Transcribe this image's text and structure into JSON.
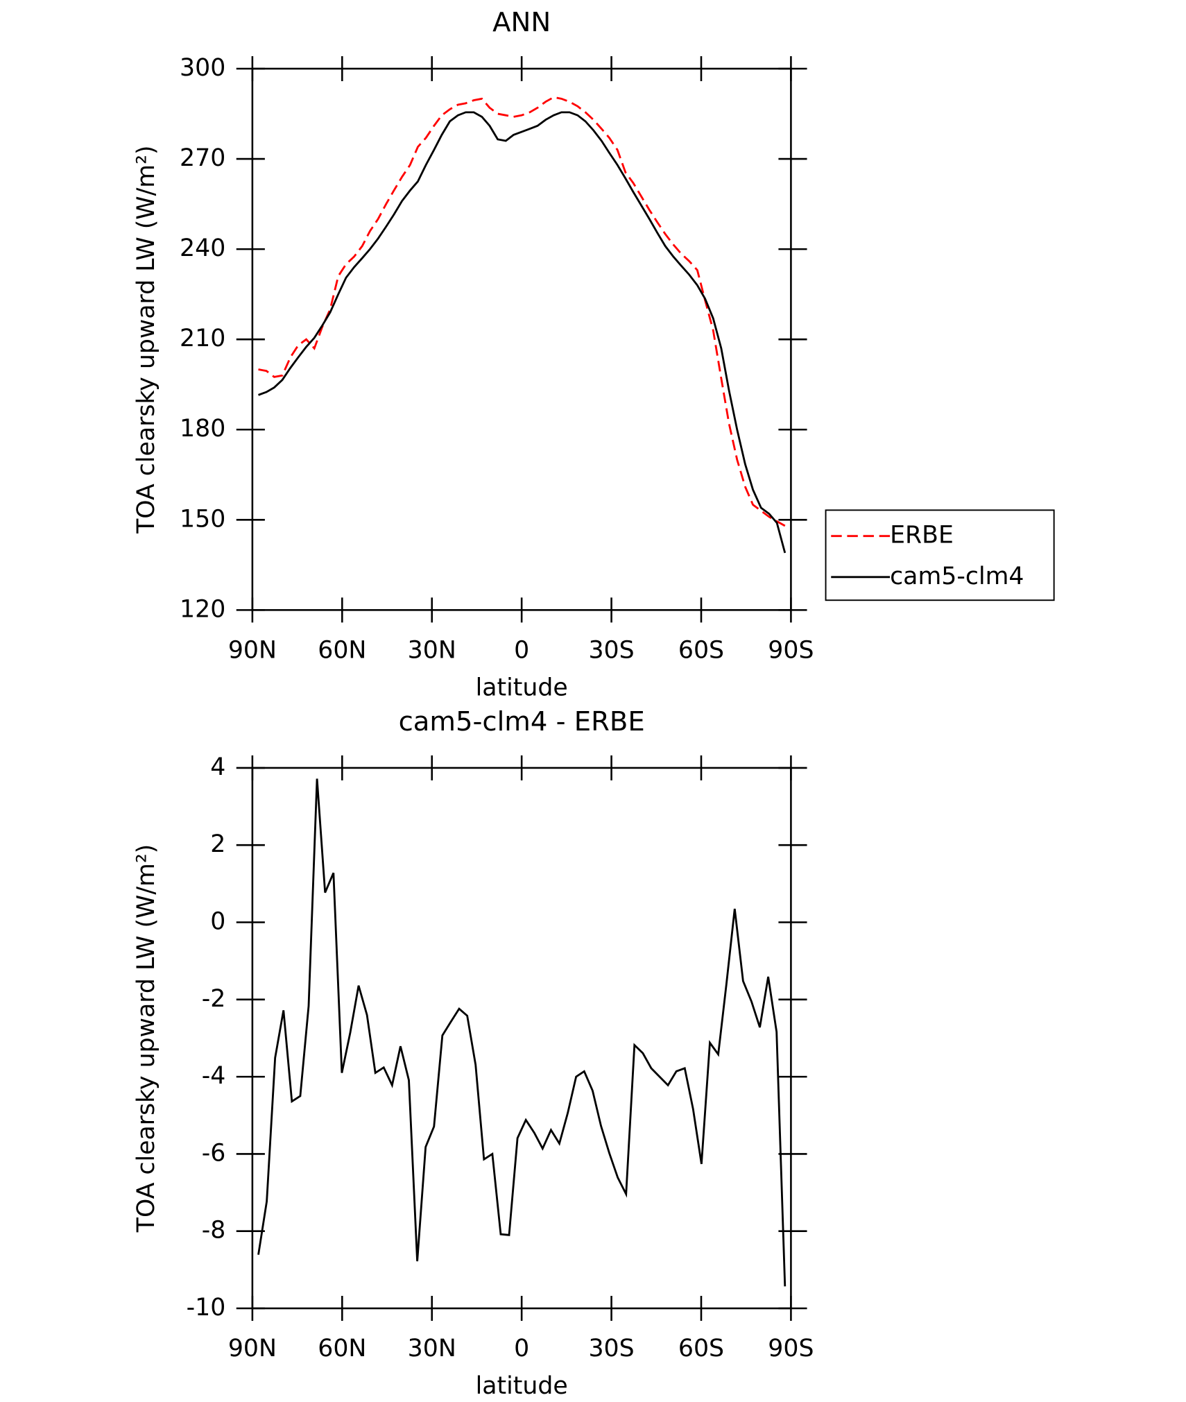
{
  "chart_data": [
    {
      "type": "line",
      "title": "ANN",
      "xlabel": "latitude",
      "ylabel": "TOA clearsky upward LW (W/m²)",
      "xlim": [
        90,
        -90
      ],
      "xticks": [
        {
          "value": 90,
          "label": "90N"
        },
        {
          "value": 60,
          "label": "60N"
        },
        {
          "value": 30,
          "label": "30N"
        },
        0,
        {
          "value": -30,
          "label": "30S"
        },
        {
          "value": -60,
          "label": "60S"
        },
        {
          "value": -90,
          "label": "90S"
        }
      ],
      "ylim": [
        120,
        300
      ],
      "yticks": [
        120,
        150,
        180,
        210,
        240,
        270,
        300
      ],
      "legend": "outside right",
      "x": [
        88,
        85.3,
        82.7,
        80,
        77.3,
        74.7,
        72,
        69.3,
        66.7,
        64,
        61.3,
        58.7,
        56,
        53.3,
        50.7,
        48,
        45.3,
        42.7,
        40,
        37.3,
        34.7,
        32,
        29.3,
        26.7,
        24,
        21.3,
        18.7,
        16,
        13.3,
        10.7,
        8,
        5.3,
        2.7,
        0,
        -2.7,
        -5.3,
        -8,
        -10.7,
        -13.3,
        -16,
        -18.7,
        -21.3,
        -24,
        -26.7,
        -29.3,
        -32,
        -34.7,
        -37.3,
        -40,
        -42.7,
        -45.3,
        -48,
        -50.7,
        -53.3,
        -56,
        -58.7,
        -61.3,
        -64,
        -66.7,
        -69.3,
        -72,
        -74.7,
        -77.3,
        -80,
        -82.7,
        -85.3,
        -88
      ],
      "series": [
        {
          "name": "ERBE",
          "color": "#ff0000",
          "linestyle": "dashed",
          "values": [
            200,
            199.5,
            197.5,
            198,
            204,
            208,
            210,
            207,
            214,
            220,
            231,
            235,
            237.5,
            241,
            246,
            250,
            255,
            259.5,
            264,
            268,
            274,
            277,
            281,
            284.5,
            286.5,
            288,
            288.5,
            289.5,
            290,
            287,
            285,
            284.5,
            284,
            284.5,
            285.5,
            287,
            289,
            290.5,
            290,
            289,
            287.5,
            285.5,
            283,
            280,
            277,
            273,
            265.5,
            262,
            257.5,
            253,
            249,
            245,
            241.5,
            238.5,
            236,
            233,
            223,
            213,
            197,
            182,
            170,
            161,
            155,
            153,
            151,
            149.5,
            148
          ]
        },
        {
          "name": "cam5-clm4",
          "color": "#000000",
          "linestyle": "solid",
          "values": [
            191.5,
            192.5,
            194,
            196.5,
            200.5,
            204,
            207.5,
            210.5,
            214.5,
            219,
            225,
            230.5,
            234,
            237,
            240,
            243.5,
            247.5,
            251.5,
            256,
            259.5,
            262.5,
            268,
            273,
            278,
            282.5,
            284.5,
            285.5,
            285.5,
            284,
            281,
            276.5,
            276,
            278,
            279,
            280,
            281,
            283,
            284.5,
            285.5,
            285.5,
            284.5,
            282.5,
            279.5,
            276,
            272,
            268,
            263.5,
            259,
            254.5,
            250,
            245.5,
            241,
            237.5,
            234.5,
            231.5,
            228,
            223.5,
            217,
            207,
            193,
            180,
            168.5,
            160,
            154,
            152,
            149,
            139
          ]
        }
      ]
    },
    {
      "type": "line",
      "title": "cam5-clm4 - ERBE",
      "xlabel": "latitude",
      "ylabel": "TOA clearsky upward LW (W/m²)",
      "xlim": [
        90,
        -90
      ],
      "xticks": [
        {
          "value": 90,
          "label": "90N"
        },
        {
          "value": 60,
          "label": "60N"
        },
        {
          "value": 30,
          "label": "30N"
        },
        0,
        {
          "value": -30,
          "label": "30S"
        },
        {
          "value": -60,
          "label": "60S"
        },
        {
          "value": -90,
          "label": "90S"
        }
      ],
      "ylim": [
        -10,
        4
      ],
      "yticks": [
        -10,
        -8,
        -6,
        -4,
        -2,
        0,
        2,
        4
      ],
      "x": [
        88,
        85.2,
        82.4,
        79.6,
        76.8,
        74,
        71.2,
        68.4,
        65.7,
        62.9,
        60.1,
        57.3,
        54.5,
        51.7,
        48.9,
        46.1,
        43.3,
        40.5,
        37.7,
        34.9,
        32.1,
        29.3,
        26.5,
        23.7,
        20.9,
        18.2,
        15.4,
        12.6,
        9.8,
        7,
        4.2,
        1.4,
        -1.4,
        -4.2,
        -7,
        -9.8,
        -12.6,
        -15.4,
        -18.2,
        -20.9,
        -23.7,
        -26.5,
        -29.3,
        -32.1,
        -34.9,
        -37.7,
        -40.5,
        -43.3,
        -46.1,
        -48.9,
        -51.7,
        -54.5,
        -57.3,
        -60.1,
        -62.9,
        -65.7,
        -68.4,
        -71.2,
        -74,
        -76.8,
        -79.6,
        -82.4,
        -85.2,
        -88
      ],
      "series": [
        {
          "color": "#000000",
          "linestyle": "solid",
          "values": [
            -8.61,
            -7.23,
            -3.51,
            -2.28,
            -4.64,
            -4.5,
            -2.17,
            3.72,
            0.77,
            1.28,
            -3.9,
            -2.86,
            -1.64,
            -2.4,
            -3.9,
            -3.76,
            -4.22,
            -3.21,
            -4.09,
            -8.78,
            -5.82,
            -5.29,
            -2.93,
            -2.58,
            -2.24,
            -2.42,
            -3.69,
            -6.14,
            -6,
            -8.08,
            -8.1,
            -5.59,
            -5.12,
            -5.45,
            -5.86,
            -5.38,
            -5.73,
            -4.94,
            -4,
            -3.86,
            -4.36,
            -5.27,
            -5.98,
            -6.61,
            -7.04,
            -3.18,
            -3.39,
            -3.78,
            -4,
            -4.22,
            -3.86,
            -3.78,
            -4.84,
            -6.26,
            -3.12,
            -3.42,
            -1.62,
            0.35,
            -1.52,
            -2.05,
            -2.72,
            -1.41,
            -2.84,
            -9.43
          ]
        }
      ]
    }
  ]
}
